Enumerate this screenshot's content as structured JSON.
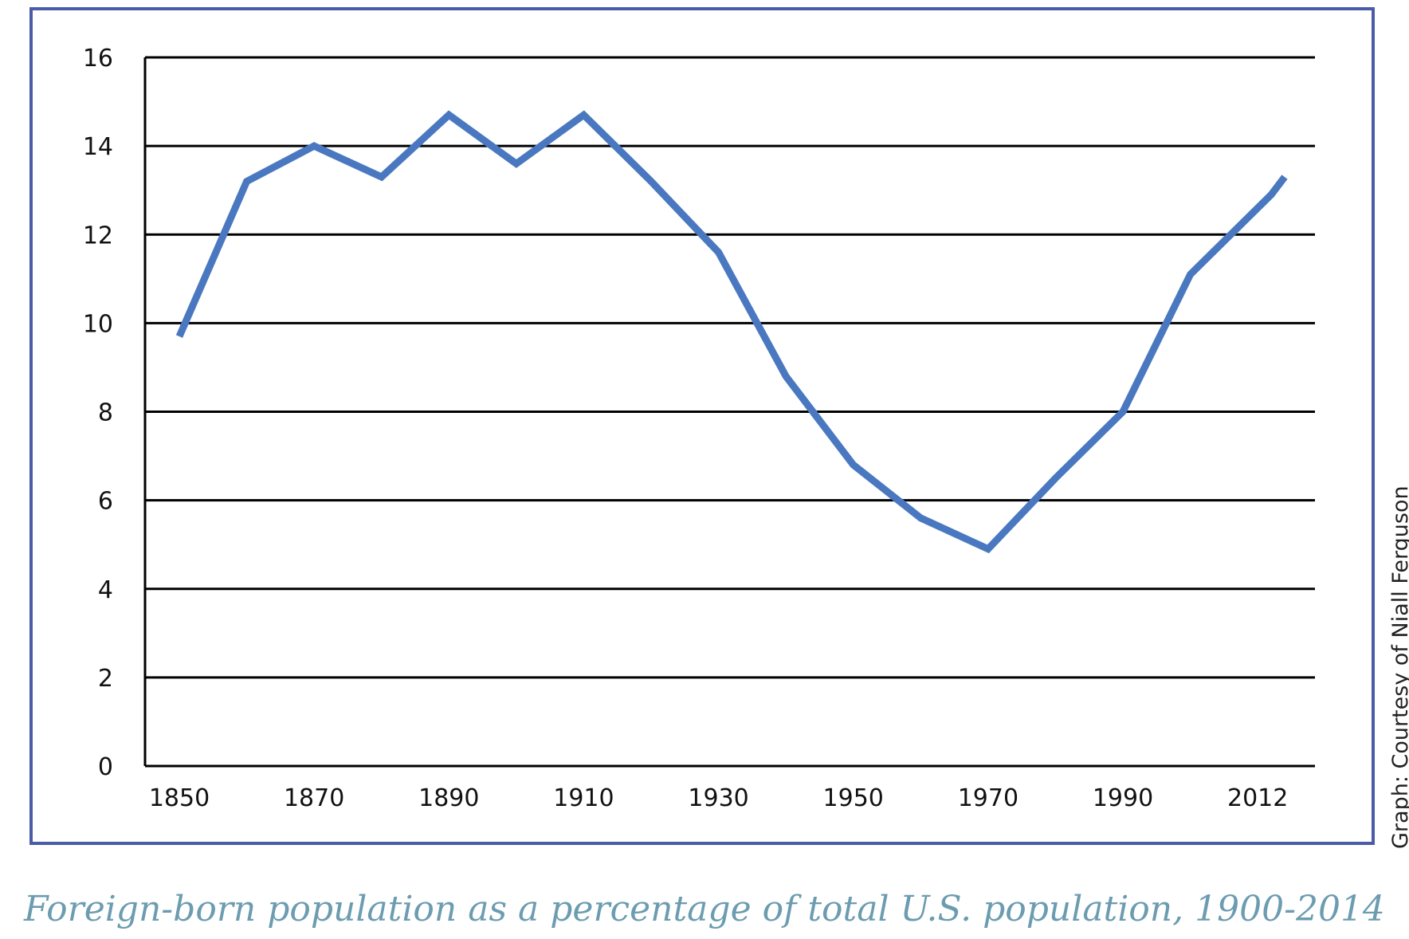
{
  "caption": "Foreign-born population as a percentage of total U.S. population, 1900-2014",
  "credit": "Graph: Courtesy of Niall Ferguson",
  "colors": {
    "frame": "#4a5ba8",
    "line": "#4a78c0",
    "grid": "#000000",
    "caption": "#6c9cb0"
  },
  "chart_data": {
    "type": "line",
    "title": "",
    "xlabel": "",
    "ylabel": "",
    "ylim": [
      0,
      16
    ],
    "yticks": [
      "0",
      "2",
      "4",
      "6",
      "8",
      "10",
      "12",
      "14",
      "16"
    ],
    "xticks": [
      "1850",
      "1870",
      "1890",
      "1910",
      "1930",
      "1950",
      "1970",
      "1990",
      "2012"
    ],
    "grid": true,
    "series": [
      {
        "x": [
          "1850",
          "1860",
          "1870",
          "1880",
          "1890",
          "1900",
          "1910",
          "1920",
          "1930",
          "1940",
          "1950",
          "1960",
          "1970",
          "1980",
          "1990",
          "2000",
          "2012",
          "2014"
        ],
        "values": [
          9.7,
          13.2,
          14.0,
          13.3,
          14.7,
          13.6,
          14.7,
          13.2,
          11.6,
          8.8,
          6.8,
          5.6,
          4.9,
          6.5,
          8.0,
          11.1,
          12.9,
          13.3
        ]
      }
    ]
  }
}
